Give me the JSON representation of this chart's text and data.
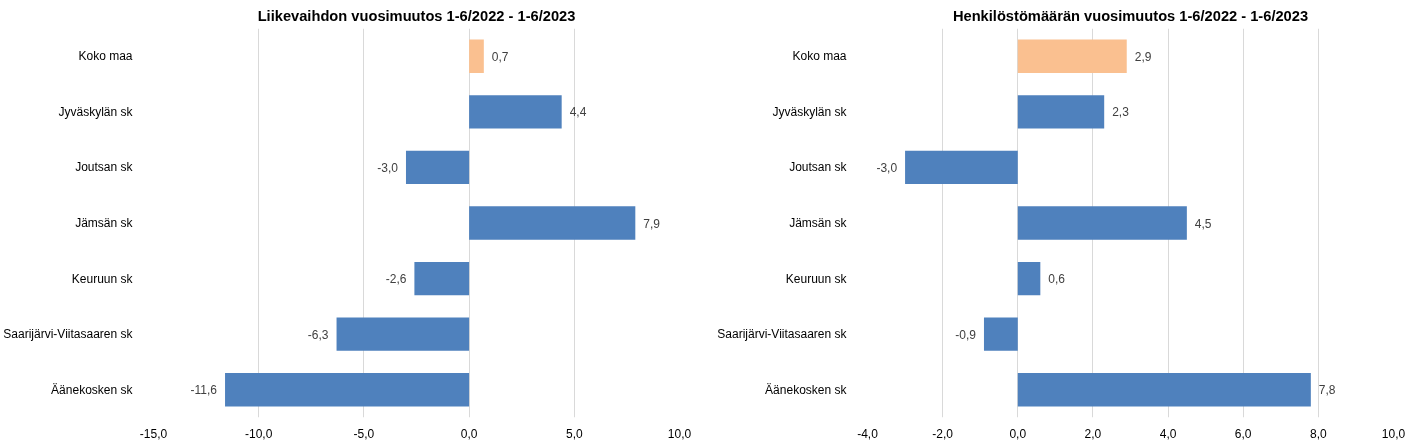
{
  "chart_data": [
    {
      "type": "bar",
      "orientation": "horizontal",
      "title": "Liikevaihdon vuosimuutos 1-6/2022 - 1-6/2023",
      "categories": [
        "Koko maa",
        "Jyväskylän sk",
        "Joutsan sk",
        "Jämsän sk",
        "Keuruun sk",
        "Saarijärvi-Viitasaaren sk",
        "Äänekosken sk"
      ],
      "values": [
        0.7,
        4.4,
        -3.0,
        7.9,
        -2.6,
        -6.3,
        -11.6
      ],
      "colors": [
        "#fac090",
        "#4f81bd",
        "#4f81bd",
        "#4f81bd",
        "#4f81bd",
        "#4f81bd",
        "#4f81bd"
      ],
      "value_labels": [
        "0,7",
        "4,4",
        "-3,0",
        "7,9",
        "-2,6",
        "-6,3",
        "-11,6"
      ],
      "xlim": [
        -15,
        10
      ],
      "xticks": [
        {
          "value": -15,
          "label": "-15,0"
        },
        {
          "value": -10,
          "label": "-10,0"
        },
        {
          "value": -5,
          "label": "-5,0"
        },
        {
          "value": 0,
          "label": "0,0"
        },
        {
          "value": 5,
          "label": "5,0"
        },
        {
          "value": 10,
          "label": "10,0"
        }
      ],
      "grid": "x"
    },
    {
      "type": "bar",
      "orientation": "horizontal",
      "title": "Henkilöstömäärän vuosimuutos 1-6/2022 - 1-6/2023",
      "categories": [
        "Koko maa",
        "Jyväskylän sk",
        "Joutsan sk",
        "Jämsän sk",
        "Keuruun sk",
        "Saarijärvi-Viitasaaren sk",
        "Äänekosken sk"
      ],
      "values": [
        2.9,
        2.3,
        -3.0,
        4.5,
        0.6,
        -0.9,
        7.8
      ],
      "colors": [
        "#fac090",
        "#4f81bd",
        "#4f81bd",
        "#4f81bd",
        "#4f81bd",
        "#4f81bd",
        "#4f81bd"
      ],
      "value_labels": [
        "2,9",
        "2,3",
        "-3,0",
        "4,5",
        "0,6",
        "-0,9",
        "7,8"
      ],
      "xlim": [
        -4,
        10
      ],
      "xticks": [
        {
          "value": -4,
          "label": "-4,0"
        },
        {
          "value": -2,
          "label": "-2,0"
        },
        {
          "value": 0,
          "label": "0,0"
        },
        {
          "value": 2,
          "label": "2,0"
        },
        {
          "value": 4,
          "label": "4,0"
        },
        {
          "value": 6,
          "label": "6,0"
        },
        {
          "value": 8,
          "label": "8,0"
        },
        {
          "value": 10,
          "label": "10,0"
        }
      ],
      "grid": "x"
    }
  ]
}
